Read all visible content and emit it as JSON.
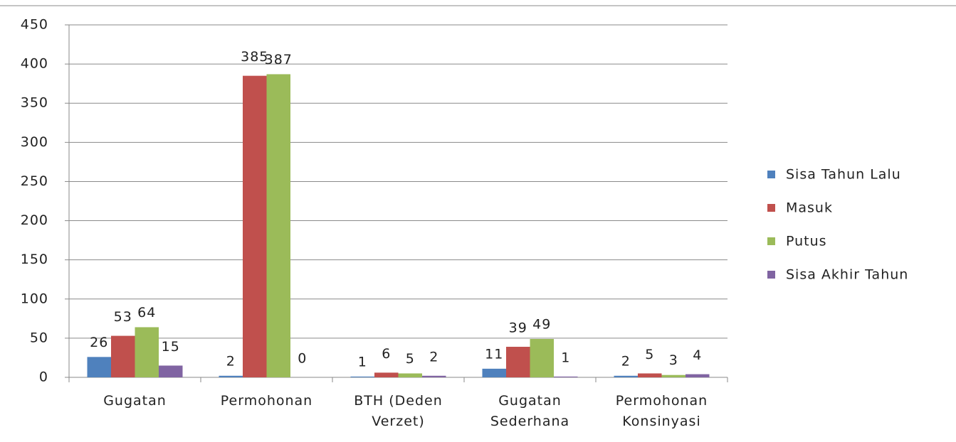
{
  "chart_data": {
    "type": "bar",
    "categories": [
      "Gugatan",
      "Permohonan",
      "BTH (Deden Verzet)",
      "Gugatan Sederhana",
      "Permohonan Konsinyasi"
    ],
    "series": [
      {
        "name": "Sisa Tahun Lalu",
        "color": "#4f81bd",
        "values": [
          26,
          2,
          1,
          11,
          2
        ]
      },
      {
        "name": "Masuk",
        "color": "#c0504d",
        "values": [
          53,
          385,
          6,
          39,
          5
        ]
      },
      {
        "name": "Putus",
        "color": "#9bbb59",
        "values": [
          64,
          387,
          5,
          49,
          3
        ]
      },
      {
        "name": "Sisa Akhir Tahun",
        "color": "#8064a2",
        "values": [
          15,
          0,
          2,
          1,
          4
        ]
      }
    ],
    "ylim": [
      0,
      450
    ],
    "yticks": [
      0,
      50,
      100,
      150,
      200,
      250,
      300,
      350,
      400,
      450
    ],
    "grid": true,
    "legend": "right"
  }
}
